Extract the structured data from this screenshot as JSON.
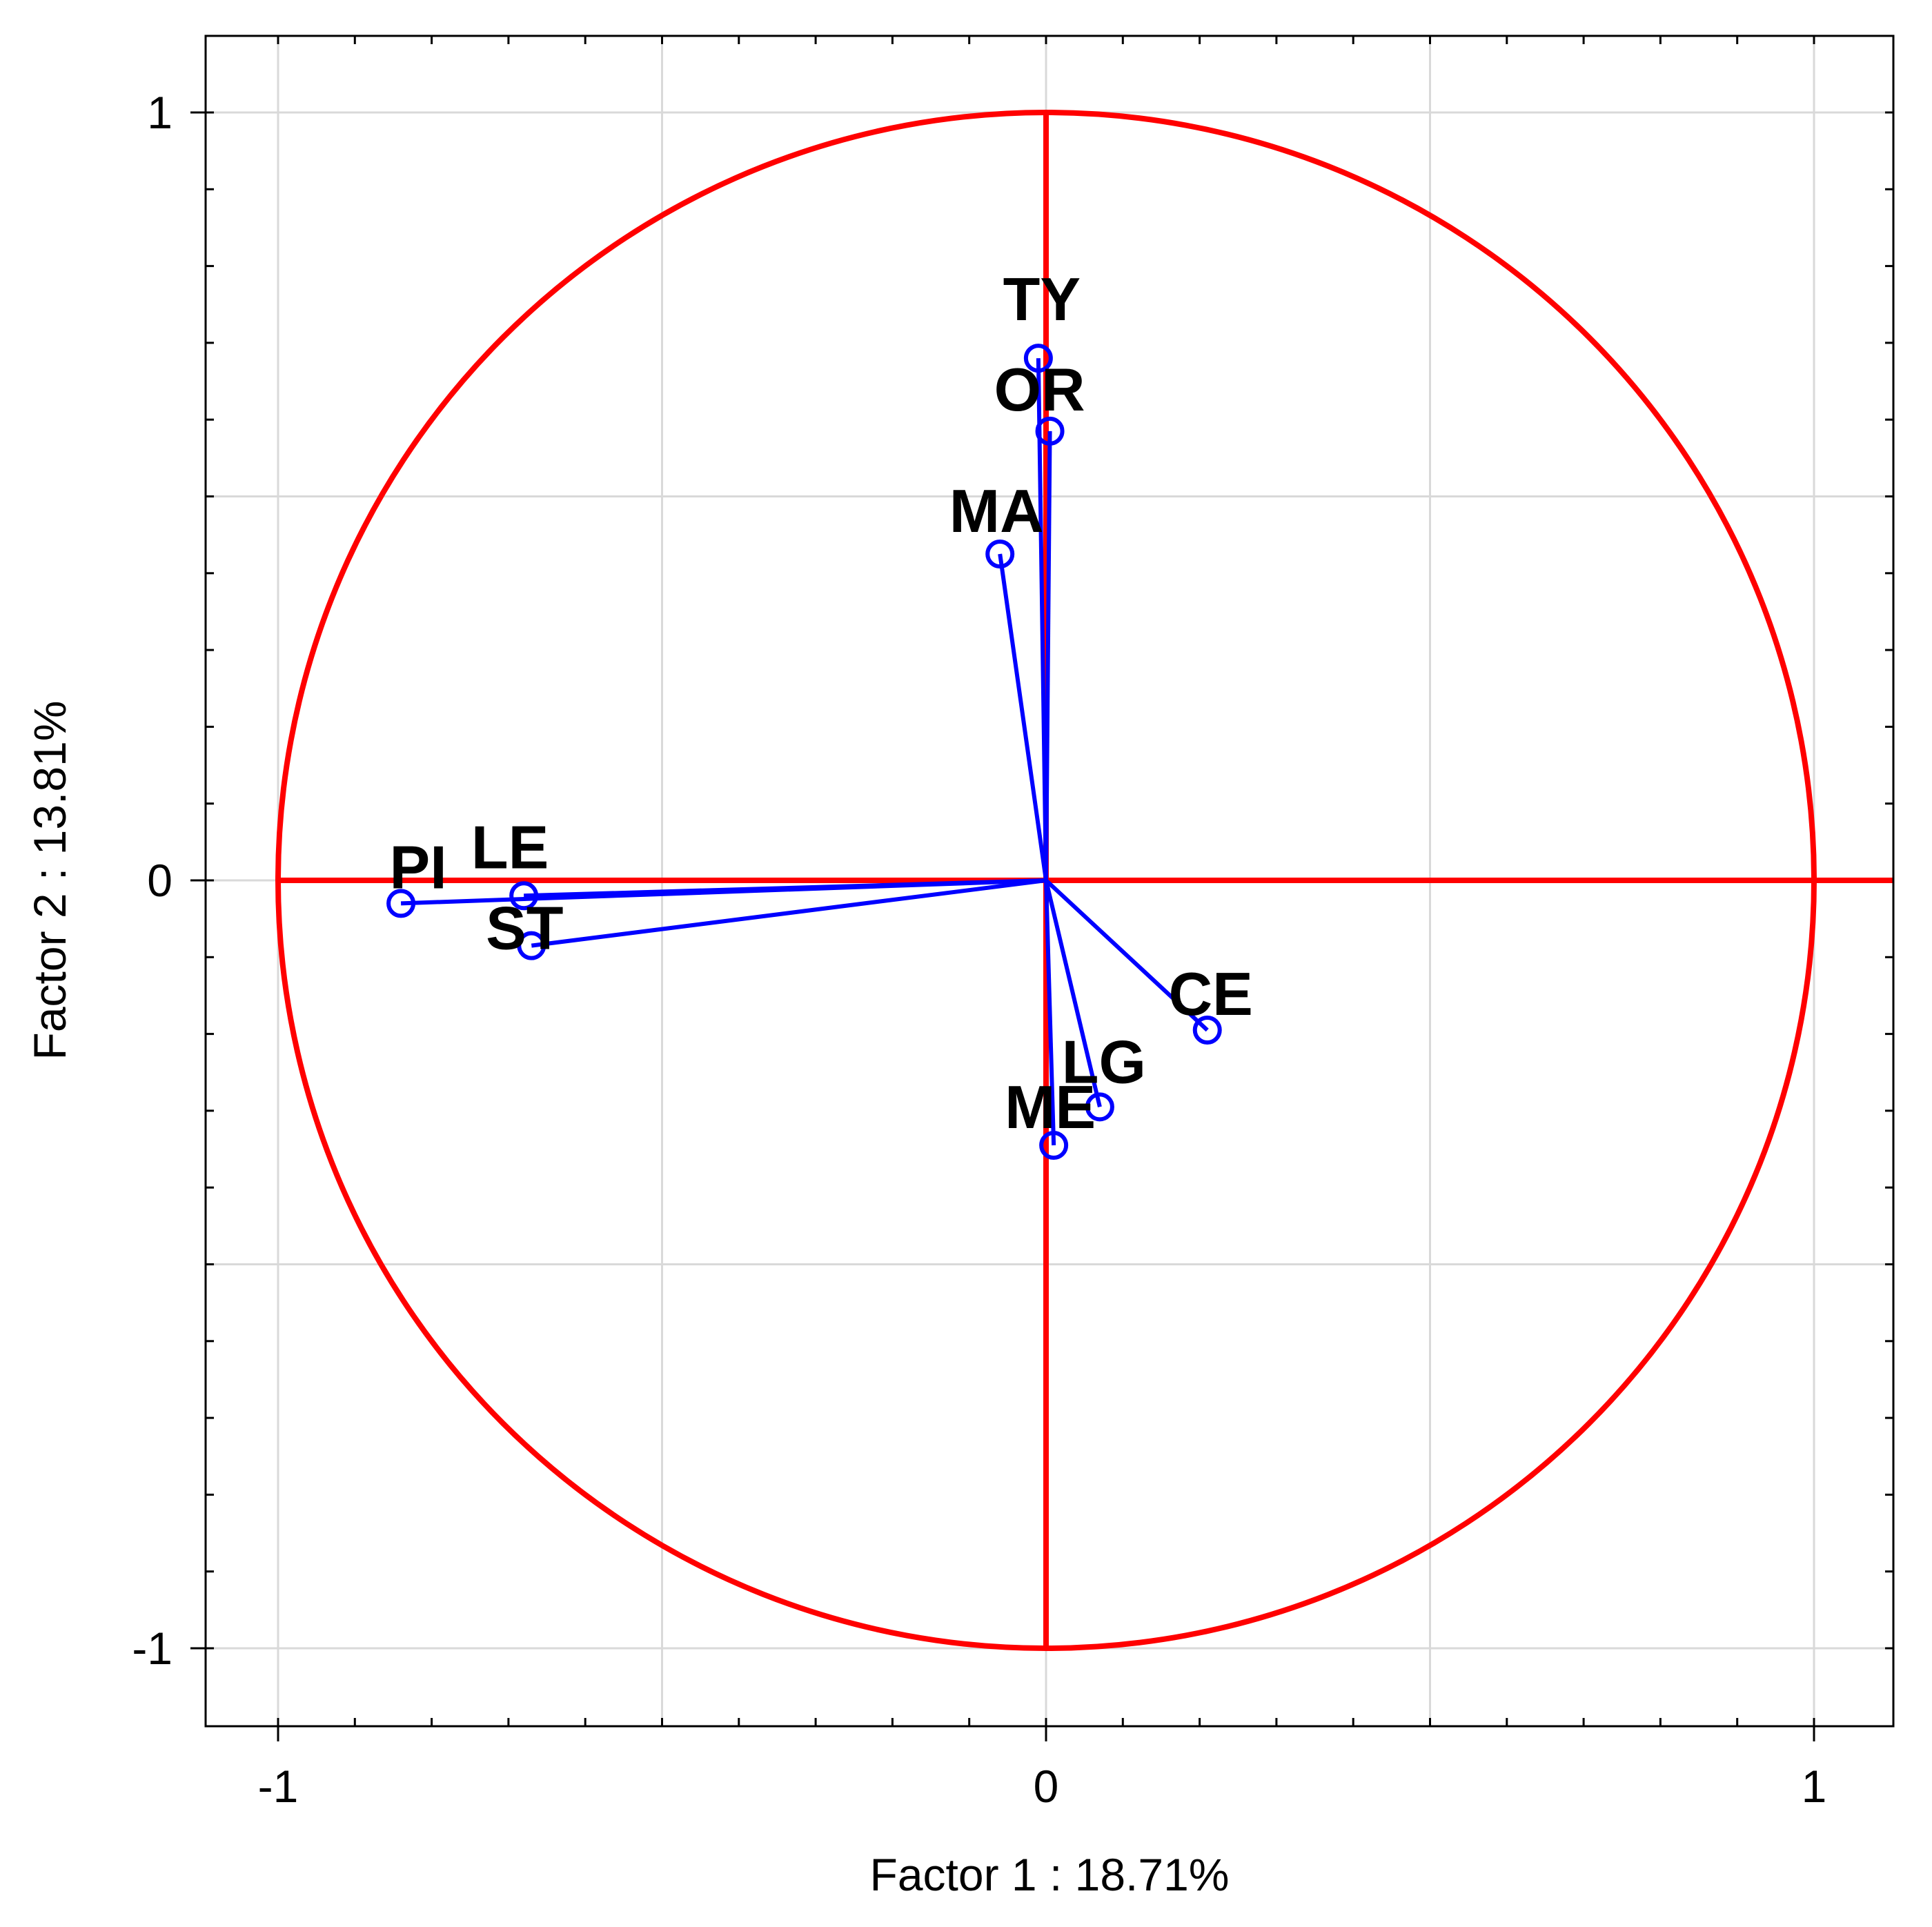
{
  "chart_data": {
    "type": "scatter",
    "subtype": "pca-correlation-circle",
    "title": "",
    "xlabel": "Factor 1 : 18.71%",
    "ylabel": "Factor 2 : 13.81%",
    "xlim": [
      -1.1,
      1.1
    ],
    "ylim": [
      -1.1,
      1.1
    ],
    "x_ticks": [
      -1,
      0,
      1
    ],
    "y_ticks": [
      -1,
      0,
      1
    ],
    "x_tick_labels": [
      "-1",
      "0",
      "1"
    ],
    "y_tick_labels": [
      "-1",
      "0",
      "1"
    ],
    "grid": true,
    "unit_circle_radius": 1,
    "colors": {
      "circle": "#ff0000",
      "axes_cross": "#ff0000",
      "vectors": "#0000ff",
      "grid": "#d9d9d9",
      "frame": "#000000"
    },
    "points": [
      {
        "label": "TY",
        "x": -0.01,
        "y": 0.68
      },
      {
        "label": "OR",
        "x": 0.005,
        "y": 0.585
      },
      {
        "label": "MA",
        "x": -0.06,
        "y": 0.425
      },
      {
        "label": "PI",
        "x": -0.84,
        "y": -0.03
      },
      {
        "label": "LE",
        "x": -0.68,
        "y": -0.02
      },
      {
        "label": "ST",
        "x": -0.67,
        "y": -0.085
      },
      {
        "label": "CE",
        "x": 0.21,
        "y": -0.195
      },
      {
        "label": "LG",
        "x": 0.07,
        "y": -0.295
      },
      {
        "label": "ME",
        "x": 0.01,
        "y": -0.345
      }
    ]
  }
}
